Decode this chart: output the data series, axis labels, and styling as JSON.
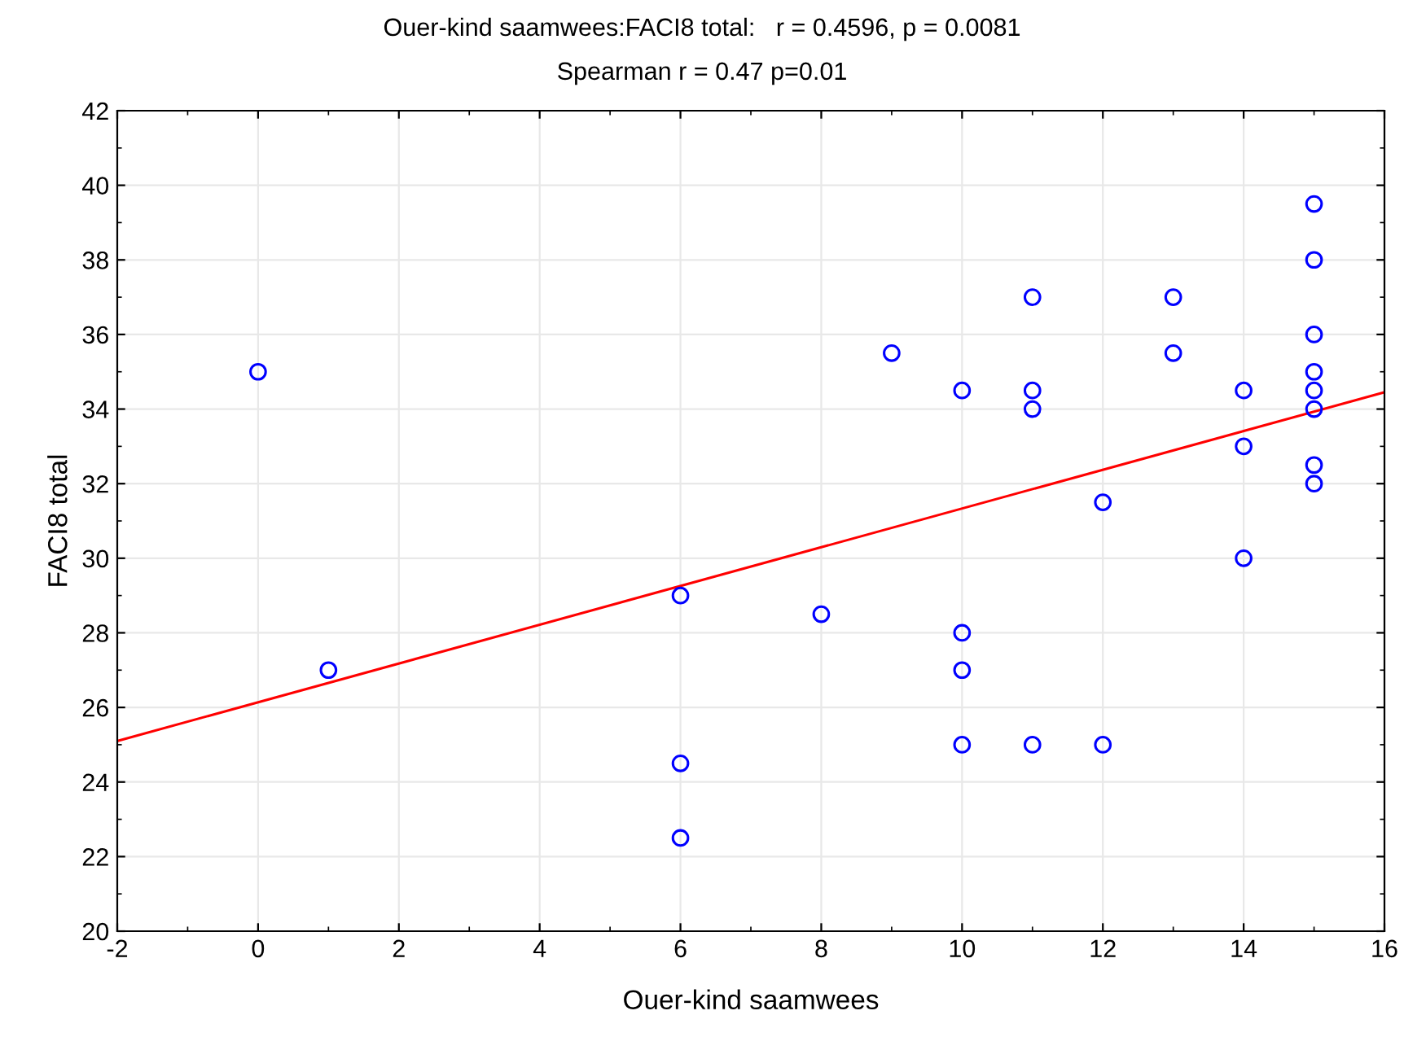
{
  "chart_data": {
    "type": "scatter",
    "title": "Ouer-kind saamwees:FACI8 total:   r = 0.4596, p = 0.0081",
    "subtitle": "Spearman r = 0.47 p=0.01",
    "xlabel": "Ouer-kind saamwees",
    "ylabel": "FACI8 total",
    "xlim": [
      -2,
      16
    ],
    "xticks": [
      -2,
      0,
      2,
      4,
      6,
      8,
      10,
      12,
      14,
      16
    ],
    "ylim": [
      20,
      42
    ],
    "yticks": [
      20,
      22,
      24,
      26,
      28,
      30,
      32,
      34,
      36,
      38,
      40,
      42
    ],
    "grid": true,
    "series": [
      {
        "color": "#0000ff",
        "marker": "circle",
        "x": [
          0,
          1,
          6,
          6,
          6,
          8,
          9,
          10,
          10,
          10,
          10,
          11,
          11,
          11,
          11,
          12,
          12,
          13,
          13,
          14,
          14,
          14,
          15,
          15,
          15,
          15,
          15,
          15,
          15,
          15
        ],
        "values": [
          35,
          27,
          29,
          24.5,
          22.5,
          28.5,
          35.5,
          34.5,
          28,
          27,
          25,
          37,
          34.5,
          34,
          25,
          31.5,
          25,
          37,
          35.5,
          34.5,
          33,
          30,
          39.5,
          38,
          36,
          35,
          34.5,
          34,
          32.5,
          32
        ]
      },
      {
        "type": "line",
        "color": "#ff0000",
        "line_style": "solid",
        "x": [
          -2,
          16
        ],
        "values": [
          25.1,
          34.45
        ]
      }
    ]
  }
}
